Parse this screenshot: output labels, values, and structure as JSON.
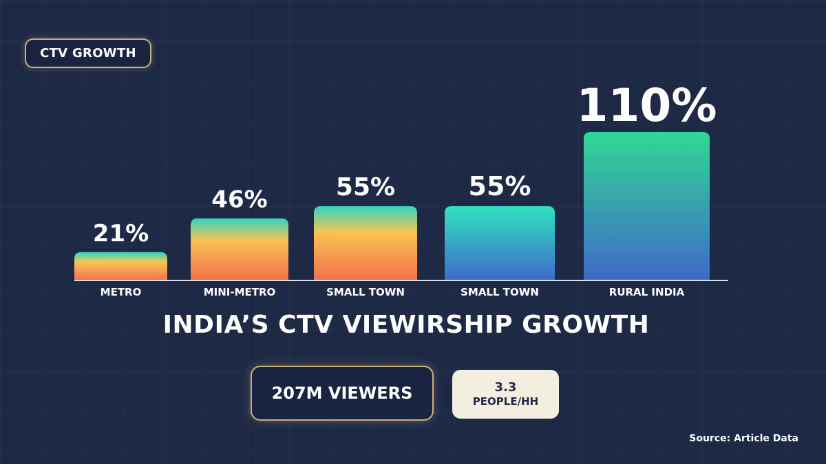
{
  "badge": {
    "label": "CTV GROWTH"
  },
  "chart_data": {
    "type": "bar",
    "categories": [
      "METRO",
      "MINI-METRO",
      "SMALL TOWN",
      "SMALL TOWN",
      "RURAL INDIA"
    ],
    "values": [
      21,
      46,
      55,
      55,
      110
    ],
    "data_labels": [
      "21%",
      "46%",
      "55%",
      "55%",
      "110%"
    ],
    "title": "INDIA’S CTV VIEWIRSHIP GROWTH",
    "xlabel": "",
    "ylabel": "",
    "grid": false,
    "legend": "none",
    "colors": {
      "warm_top": "#2fd6c0",
      "warm_mid": "#f7c453",
      "warm_bottom": "#f4704a",
      "cool_top": "#2fe3c2",
      "cool_bottom": "#3f6ac8",
      "green_top": "#2fd894",
      "baseline": "#d8dde8"
    }
  },
  "stats": {
    "viewers": "207M VIEWERS",
    "people_value": "3.3",
    "people_unit": "PEOPLE/HH"
  },
  "source": "Source: Article Data"
}
